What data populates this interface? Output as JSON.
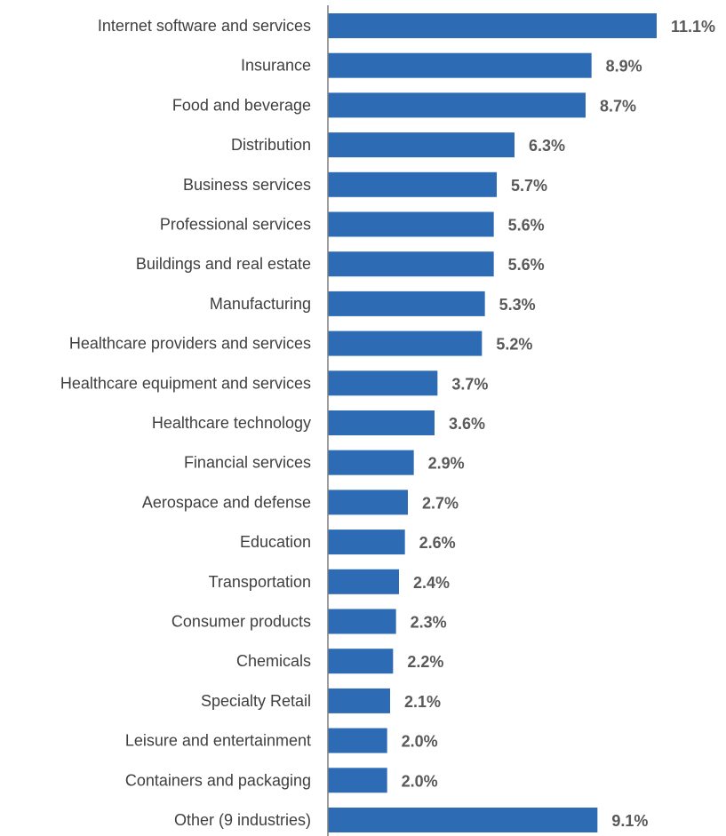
{
  "chart_data": {
    "type": "bar",
    "orientation": "horizontal",
    "title": "",
    "xlabel": "",
    "ylabel": "",
    "value_suffix": "%",
    "grid": false,
    "legend": "none",
    "bar_color": "#2e6bb5",
    "axis_color": "#7f7f7f",
    "label_color": "#3f3f3f",
    "value_label_color": "#595959",
    "categories": [
      "Internet software and services",
      "Insurance",
      "Food and beverage",
      "Distribution",
      "Business services",
      "Professional services",
      "Buildings and real estate",
      "Manufacturing",
      "Healthcare providers and services",
      "Healthcare equipment and services",
      "Healthcare technology",
      "Financial services",
      "Aerospace and defense",
      "Education",
      "Transportation",
      "Consumer products",
      "Chemicals",
      "Specialty Retail",
      "Leisure and entertainment",
      "Containers and packaging",
      "Other (9 industries)"
    ],
    "values": [
      11.1,
      8.9,
      8.7,
      6.3,
      5.7,
      5.6,
      5.6,
      5.3,
      5.2,
      3.7,
      3.6,
      2.9,
      2.7,
      2.6,
      2.4,
      2.3,
      2.2,
      2.1,
      2.0,
      2.0,
      9.1
    ],
    "value_labels": [
      "11.1%",
      "8.9%",
      "8.7%",
      "6.3%",
      "5.7%",
      "5.6%",
      "5.6%",
      "5.3%",
      "5.2%",
      "3.7%",
      "3.6%",
      "2.9%",
      "2.7%",
      "2.6%",
      "2.4%",
      "2.3%",
      "2.2%",
      "2.1%",
      "2.0%",
      "2.0%",
      "9.1%"
    ],
    "xlim": [
      0,
      11.1
    ]
  }
}
